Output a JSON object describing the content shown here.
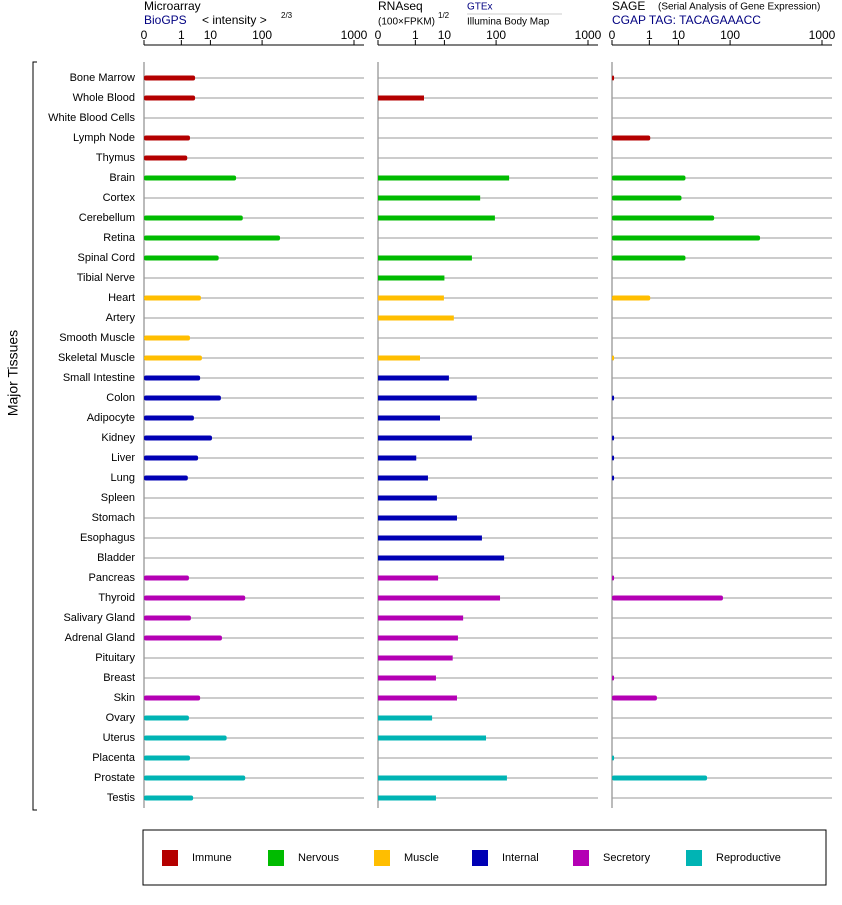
{
  "y_axis_label": "Major Tissues",
  "tissues": [
    "Bone Marrow",
    "Whole Blood",
    "White Blood Cells",
    "Lymph Node",
    "Thymus",
    "Brain",
    "Cortex",
    "Cerebellum",
    "Retina",
    "Spinal Cord",
    "Tibial Nerve",
    "Heart",
    "Artery",
    "Smooth Muscle",
    "Skeletal Muscle",
    "Small Intestine",
    "Colon",
    "Adipocyte",
    "Kidney",
    "Liver",
    "Lung",
    "Spleen",
    "Stomach",
    "Esophagus",
    "Bladder",
    "Pancreas",
    "Thyroid",
    "Salivary Gland",
    "Adrenal Gland",
    "Pituitary",
    "Breast",
    "Skin",
    "Ovary",
    "Uterus",
    "Placenta",
    "Prostate",
    "Testis"
  ],
  "tissue_group": [
    0,
    0,
    0,
    0,
    0,
    1,
    1,
    1,
    1,
    1,
    1,
    2,
    2,
    2,
    2,
    3,
    3,
    3,
    3,
    3,
    3,
    3,
    3,
    3,
    3,
    4,
    4,
    4,
    4,
    4,
    4,
    4,
    5,
    5,
    5,
    5,
    5
  ],
  "groups": [
    {
      "name": "Immune",
      "color": "#b40000"
    },
    {
      "name": "Nervous",
      "color": "#00bb00"
    },
    {
      "name": "Muscle",
      "color": "#ffbe00"
    },
    {
      "name": "Internal",
      "color": "#0000b4"
    },
    {
      "name": "Secretory",
      "color": "#b400b4"
    },
    {
      "name": "Reproductive",
      "color": "#00b4b4"
    }
  ],
  "chart_data": [
    {
      "type": "barh",
      "title": "Microarray",
      "source": "BioGPS",
      "axis_label": "< intensity >",
      "axis_exponent": "2/3",
      "xlim": [
        0,
        1000
      ],
      "xticks": [
        0,
        1,
        10,
        100,
        1000
      ],
      "values": [
        3.5,
        3.5,
        null,
        2.3,
        1.8,
        37,
        null,
        49,
        176,
        16,
        null,
        5.4,
        null,
        2.3,
        5.8,
        5.1,
        18,
        3.2,
        11,
        4.4,
        1.9,
        null,
        null,
        null,
        null,
        2.1,
        54,
        2.5,
        19,
        null,
        null,
        5.1,
        2.1,
        24,
        2.3,
        54,
        3.0
      ]
    },
    {
      "type": "barh",
      "title": "RNAseq",
      "axis_label": "(100×FPKM)",
      "axis_exponent": "1/2",
      "source": "GTEx",
      "source2": "Illumina Body Map",
      "xlim": [
        0,
        1000
      ],
      "xticks": [
        0,
        1,
        10,
        100,
        1000
      ],
      "values": [
        null,
        2.3,
        null,
        null,
        null,
        152,
        56,
        96,
        null,
        40,
        10,
        9.7,
        17,
        null,
        1.6,
        13,
        49,
        7.6,
        40,
        1.1,
        3.2,
        6.2,
        20,
        60,
        130,
        6.7,
        114,
        27,
        21,
        16,
        5.8,
        20,
        4.4,
        70,
        null,
        142,
        5.8
      ]
    },
    {
      "type": "barh",
      "title": "SAGE",
      "subtitle": "(Serial Analysis of Gene Expression)",
      "source": "CGAP TAG: TACAGAAACC",
      "xlim": [
        0,
        1000
      ],
      "xticks": [
        0,
        1,
        10,
        100,
        1000
      ],
      "values": [
        1e-05,
        null,
        null,
        1.1,
        null,
        15,
        12,
        56,
        247,
        15,
        null,
        1.1,
        null,
        null,
        1e-05,
        null,
        1e-05,
        null,
        1e-05,
        1e-05,
        1e-05,
        null,
        null,
        null,
        null,
        1e-05,
        78,
        null,
        null,
        null,
        1e-05,
        2.1,
        null,
        null,
        1e-05,
        42,
        null
      ]
    }
  ]
}
